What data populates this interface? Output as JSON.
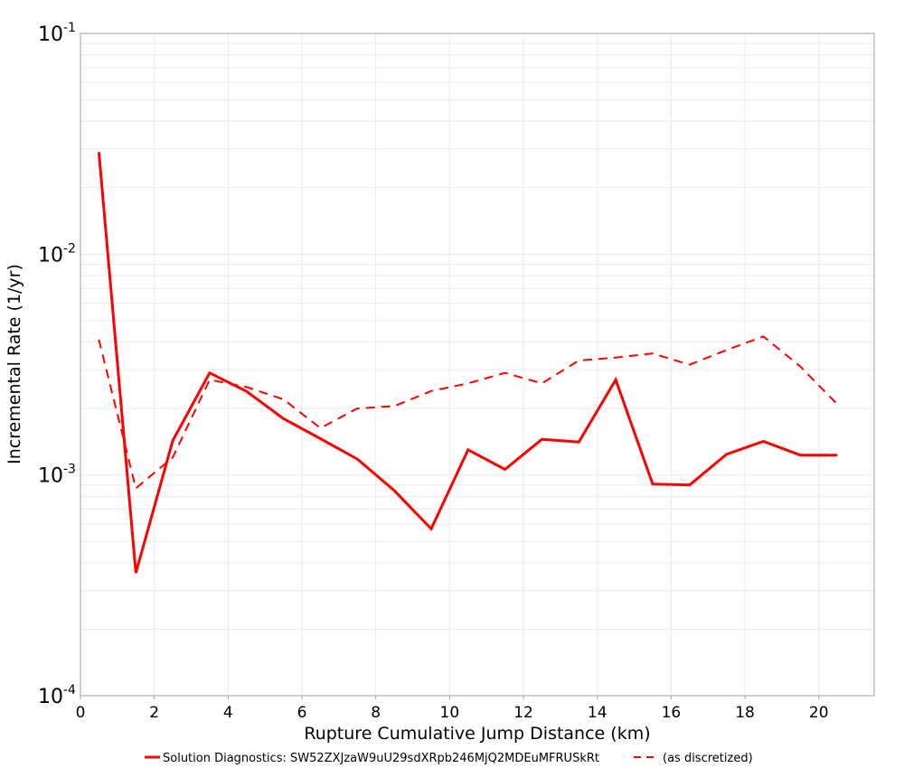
{
  "chart_data": {
    "type": "line",
    "title": "",
    "xlabel": "Rupture Cumulative Jump Distance (km)",
    "ylabel": "Incremental Rate (1/yr)",
    "xlim": [
      0,
      21.5
    ],
    "ylim": [
      0.0001,
      0.1
    ],
    "yscale": "log",
    "x_ticks": [
      0,
      2,
      4,
      6,
      8,
      10,
      12,
      14,
      16,
      18,
      20
    ],
    "y_ticks": [
      {
        "value": 0.1,
        "base": "10",
        "exp": "-1"
      },
      {
        "value": 0.01,
        "base": "10",
        "exp": "-2"
      },
      {
        "value": 0.001,
        "base": "10",
        "exp": "-3"
      },
      {
        "value": 0.0001,
        "base": "10",
        "exp": "-4"
      }
    ],
    "grid": true,
    "legend_position": "bottom",
    "x": [
      0.5,
      1.5,
      2.5,
      3.5,
      4.5,
      5.5,
      6.5,
      7.5,
      8.5,
      9.5,
      10.5,
      11.5,
      12.5,
      13.5,
      14.5,
      15.5,
      16.5,
      17.5,
      18.5,
      19.5,
      20.5
    ],
    "series": [
      {
        "name": "Solution Diagnostics: SW52ZXJzaW9uU29sdXRpb246MjQ2MDEuMFRUSkRt",
        "style": "solid",
        "color": "#ff0000",
        "values": [
          0.029,
          0.00036,
          0.00143,
          0.0029,
          0.00239,
          0.0018,
          0.00146,
          0.00118,
          0.00085,
          0.00057,
          0.0013,
          0.00106,
          0.00145,
          0.00141,
          0.0027,
          0.00091,
          0.0009,
          0.00124,
          0.00142,
          0.00123,
          0.00123
        ]
      },
      {
        "name": "(as discretized)",
        "style": "dashed",
        "color": "#ff0000",
        "values": [
          0.0041,
          0.00087,
          0.0012,
          0.0027,
          0.0025,
          0.0022,
          0.00163,
          0.002,
          0.00205,
          0.0024,
          0.0026,
          0.0029,
          0.0026,
          0.0033,
          0.0034,
          0.00355,
          0.00316,
          0.00368,
          0.00424,
          0.0031,
          0.00209
        ]
      }
    ]
  }
}
